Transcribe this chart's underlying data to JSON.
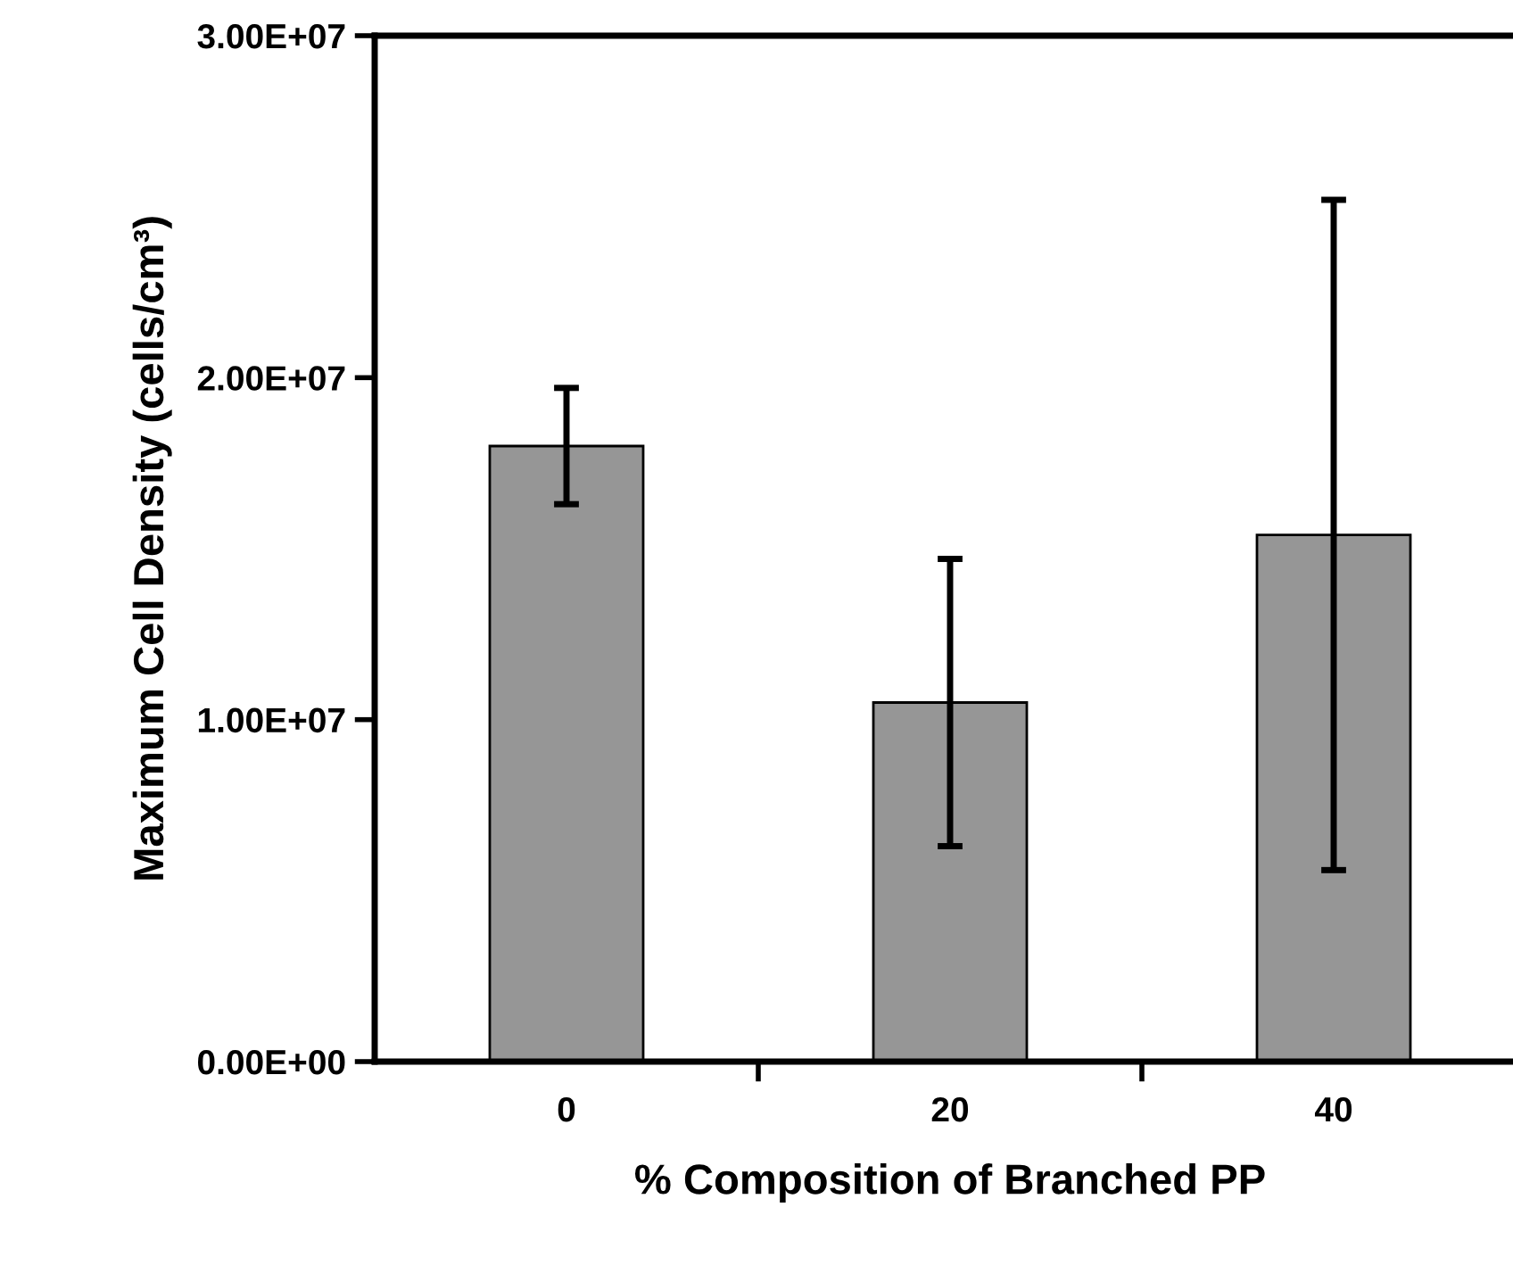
{
  "chart_data": {
    "type": "bar",
    "xlabel": "% Composition of Branched PP",
    "ylabel": "Maximum Cell Density (cells/cm³)",
    "categories": [
      "0",
      "20",
      "40"
    ],
    "values": [
      18000000,
      10500000,
      15400000
    ],
    "errors": [
      1700000,
      4200000,
      9800000
    ],
    "color": "#969696",
    "ylim": [
      0,
      30000000
    ],
    "yticks": [
      {
        "value": 0,
        "label": "0.00E+00"
      },
      {
        "value": 10000000,
        "label": "1.00E+07"
      },
      {
        "value": 20000000,
        "label": "2.00E+07"
      },
      {
        "value": 30000000,
        "label": "3.00E+07"
      }
    ],
    "grid": false,
    "legend": false
  }
}
